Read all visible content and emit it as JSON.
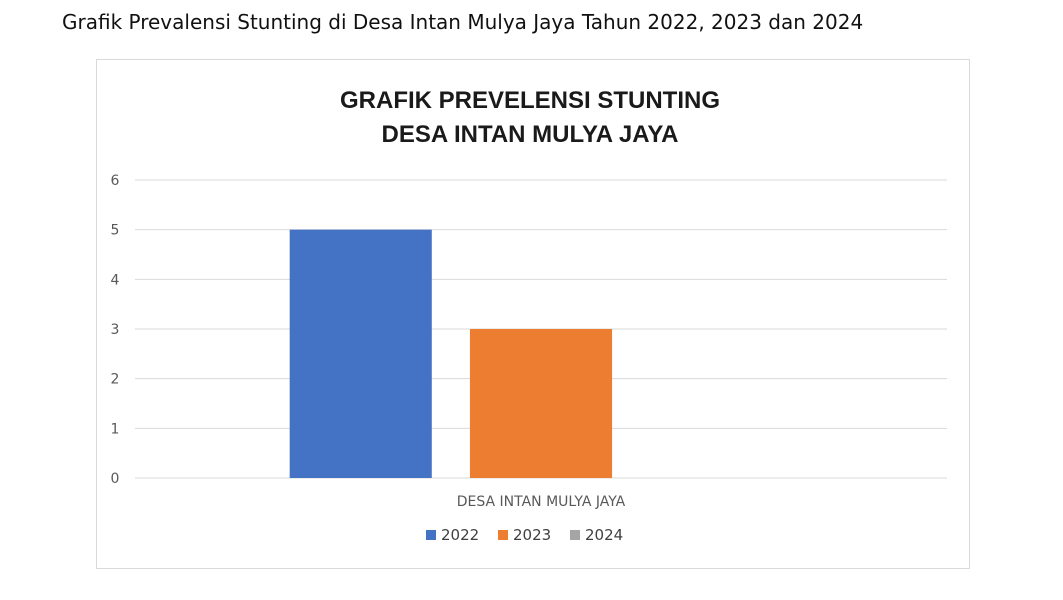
{
  "caption": "Grafik Prevalensi Stunting di Desa Intan Mulya Jaya Tahun 2022, 2023 dan 2024",
  "chart_data": {
    "type": "bar",
    "title_lines": [
      "GRAFIK PREVELENSI STUNTING",
      "DESA INTAN MULYA JAYA"
    ],
    "categories": [
      "DESA INTAN MULYA JAYA"
    ],
    "series": [
      {
        "name": "2022",
        "values": [
          5
        ],
        "color": "#4472c4"
      },
      {
        "name": "2023",
        "values": [
          3
        ],
        "color": "#ed7d31"
      },
      {
        "name": "2024",
        "values": [
          0
        ],
        "color": "#a5a5a5"
      }
    ],
    "ylim": [
      0,
      6
    ],
    "yticks": [
      0,
      1,
      2,
      3,
      4,
      5,
      6
    ],
    "grid": true,
    "legend": "bottom",
    "xlabel": "",
    "ylabel": ""
  }
}
